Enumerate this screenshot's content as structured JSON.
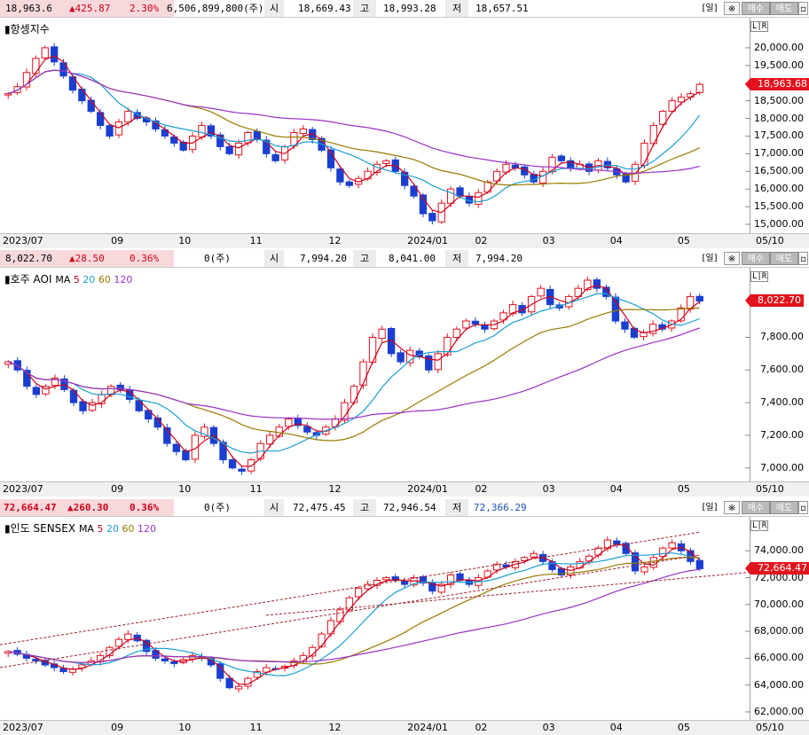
{
  "panels": [
    {
      "id": "hangseng",
      "title": "항셍지수",
      "ma_legend": [],
      "header": {
        "price": "18,963.68",
        "change": "▲425.87",
        "pct": "2.30%",
        "volume": "6,506,899,800(주)",
        "open_label": "시",
        "open": "18,669.43",
        "high_label": "고",
        "high": "18,993.28",
        "low_label": "저",
        "low": "18,657.51"
      },
      "buttons": {
        "day": "[일]",
        "icon": "※",
        "buy": "매수",
        "sell": "매도"
      },
      "lr": "L|R",
      "current_tag": "18,963.68",
      "y_ticks": [
        "20,000.00",
        "19,500.00",
        "19,000.00",
        "18,500.00",
        "18,000.00",
        "17,500.00",
        "17,000.00",
        "16,500.00",
        "16,000.00",
        "15,500.00",
        "15,000.00"
      ],
      "x_ticks": [
        "2023/07",
        "09",
        "10",
        "11",
        "12",
        "2024/01",
        "02",
        "03",
        "04",
        "05",
        "05/10"
      ],
      "chart_data": {
        "type": "candlestick",
        "ylim": [
          14900,
          20500
        ],
        "close": [
          18700,
          18900,
          19300,
          19700,
          20000,
          19600,
          19200,
          18800,
          18500,
          18200,
          17800,
          17500,
          17900,
          18200,
          18000,
          17900,
          17700,
          17500,
          17300,
          17100,
          17500,
          17800,
          17500,
          17200,
          17000,
          17300,
          17600,
          17400,
          17000,
          16800,
          17200,
          17600,
          17700,
          17400,
          17100,
          16600,
          16200,
          16100,
          16300,
          16500,
          16700,
          16800,
          16500,
          16100,
          15800,
          15300,
          15100,
          15600,
          16000,
          15800,
          15600,
          15900,
          16200,
          16500,
          16700,
          16600,
          16400,
          16200,
          16500,
          16900,
          16800,
          16600,
          16700,
          16500,
          16800,
          16600,
          16400,
          16200,
          16700,
          17300,
          17800,
          18200,
          18500,
          18600,
          18700,
          18964
        ]
      }
    },
    {
      "id": "aoi",
      "title": "호주 AOI",
      "ma_legend": [
        {
          "label": "MA",
          "color": "#000000"
        },
        {
          "label": "5",
          "color": "#d0021b"
        },
        {
          "label": "20",
          "color": "#1a9fd6"
        },
        {
          "label": "60",
          "color": "#9a7a00"
        },
        {
          "label": "120",
          "color": "#9b30c8"
        }
      ],
      "header": {
        "price": "8,022.70",
        "change": "▲28.50",
        "pct": "0.36%",
        "volume": "0(주)",
        "open_label": "시",
        "open": "7,994.20",
        "high_label": "고",
        "high": "8,041.00",
        "low_label": "저",
        "low": "7,994.20"
      },
      "buttons": {
        "day": "[일]",
        "icon": "※",
        "buy": "매수",
        "sell": "매도"
      },
      "lr": "L|R",
      "current_tag": "8,022.70",
      "y_ticks": [
        "7,800.00",
        "7,600.00",
        "7,400.00",
        "7,200.00",
        "7,000.00"
      ],
      "x_ticks": [
        "2023/07",
        "09",
        "10",
        "11",
        "12",
        "2024/01",
        "02",
        "03",
        "04",
        "05",
        "05/10"
      ],
      "chart_data": {
        "type": "candlestick",
        "ylim": [
          6950,
          8150
        ],
        "close": [
          7650,
          7600,
          7500,
          7450,
          7500,
          7550,
          7480,
          7400,
          7350,
          7400,
          7450,
          7500,
          7480,
          7420,
          7350,
          7300,
          7250,
          7150,
          7100,
          7050,
          7200,
          7250,
          7150,
          7050,
          7000,
          6980,
          7050,
          7150,
          7200,
          7250,
          7300,
          7260,
          7220,
          7200,
          7250,
          7300,
          7400,
          7500,
          7650,
          7800,
          7850,
          7700,
          7650,
          7720,
          7680,
          7600,
          7700,
          7800,
          7850,
          7900,
          7880,
          7850,
          7900,
          7950,
          8000,
          7950,
          8050,
          8100,
          8000,
          7980,
          8050,
          8100,
          8150,
          8100,
          8050,
          7900,
          7850,
          7800,
          7830,
          7880,
          7850,
          7900,
          7980,
          8050,
          8022
        ]
      }
    },
    {
      "id": "sensex",
      "title": "인도 SENSEX",
      "ma_legend": [
        {
          "label": "MA",
          "color": "#000000"
        },
        {
          "label": "5",
          "color": "#d0021b"
        },
        {
          "label": "20",
          "color": "#1a9fd6"
        },
        {
          "label": "60",
          "color": "#9a7a00"
        },
        {
          "label": "120",
          "color": "#9b30c8"
        }
      ],
      "header": {
        "price": "72,664.47",
        "change": "▲260.30",
        "pct": "0.36%",
        "volume": "0(주)",
        "open_label": "시",
        "open": "72,475.45",
        "high_label": "고",
        "high": "72,946.54",
        "low_label": "저",
        "low": "72,366.29"
      },
      "buttons": {
        "day": "[일]",
        "icon": "※",
        "buy": "매수",
        "sell": "매도"
      },
      "lr": "L|R",
      "current_tag": "72,664.47",
      "y_ticks": [
        "74,000.00",
        "72,000.00",
        "70,000.00",
        "68,000.00",
        "66,000.00",
        "64,000.00",
        "62,000.00"
      ],
      "x_ticks": [
        "2023/07",
        "09",
        "10",
        "11",
        "12",
        "2024/01",
        "02",
        "03",
        "04",
        "05",
        "05/10"
      ],
      "chart_data": {
        "type": "candlestick",
        "ylim": [
          61800,
          75600
        ],
        "close": [
          66500,
          66300,
          66000,
          65800,
          65500,
          65300,
          65000,
          65200,
          65500,
          65800,
          66200,
          66800,
          67400,
          67800,
          67300,
          66500,
          66000,
          65800,
          65600,
          65900,
          66200,
          66000,
          65500,
          64500,
          63800,
          63900,
          64500,
          65000,
          65300,
          65200,
          65400,
          65800,
          66200,
          66800,
          67800,
          68800,
          69600,
          70500,
          71200,
          71500,
          71800,
          72000,
          71800,
          71500,
          72000,
          71600,
          71000,
          71500,
          72200,
          71800,
          71500,
          72000,
          72500,
          73000,
          72800,
          73200,
          73500,
          73800,
          73200,
          72600,
          72200,
          72800,
          73200,
          73600,
          74200,
          74800,
          74500,
          73800,
          72500,
          72800,
          73500,
          74200,
          74600,
          74000,
          73200,
          72664
        ]
      }
    }
  ]
}
